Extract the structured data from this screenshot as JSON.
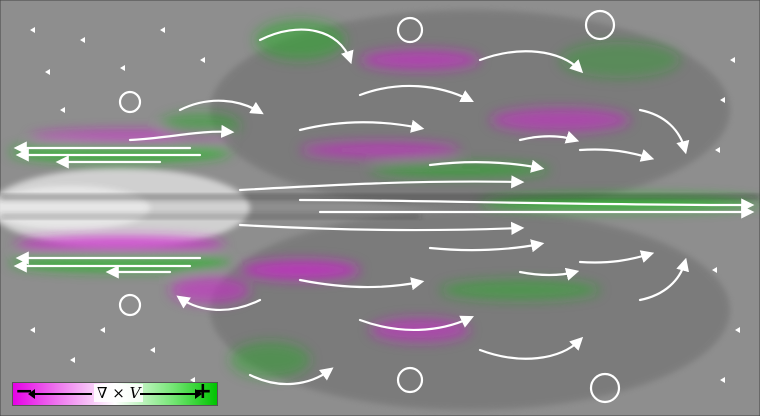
{
  "figure": {
    "subject": "flow-streamline-vorticity-field",
    "colors": {
      "background": "#8c8c8c",
      "negative_vorticity": "#d020d0",
      "positive_vorticity": "#20c020",
      "streamline_arrows": "#ffffff"
    },
    "colorbar": {
      "minus_label": "−",
      "plus_label": "+",
      "quantity_label": "∇ × V"
    }
  }
}
